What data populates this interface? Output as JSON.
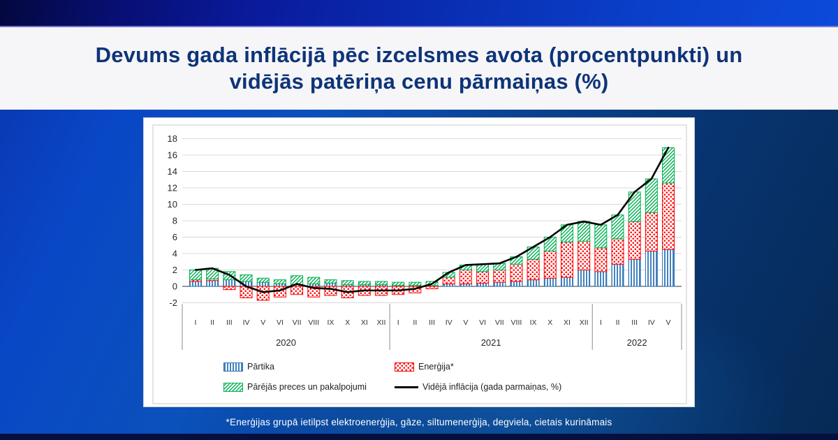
{
  "page": {
    "title_line1": "Devums gada inflācijā pēc izcelsmes avota (procentpunkti) un",
    "title_line2": "vidējās patēriņa cenu pārmaiņas (%)",
    "footnote": "*Enerģijas grupā ietilpst elektroenerģija, gāze, siltumenerģija, degviela, cietais kurināmais"
  },
  "colors": {
    "title_text": "#0e3478",
    "food": "#2e75b6",
    "energy": "#ff0000",
    "other": "#00b050",
    "line": "#000000",
    "grid": "#d9d9d9",
    "axis": "#595959"
  },
  "chart_data": {
    "type": "bar",
    "subtype": "stacked-column-with-line",
    "title": "Devums gada inflācijā pēc izcelsmes avota (procentpunkti) un vidējās patēriņa cenu pārmaiņas (%)",
    "xlabel": "",
    "ylabel": "",
    "ylim": [
      -2,
      18
    ],
    "y_step": 2,
    "grid": true,
    "legend_position": "bottom",
    "categories": [
      "I",
      "II",
      "III",
      "IV",
      "V",
      "VI",
      "VII",
      "VIII",
      "IX",
      "X",
      "XI",
      "XII",
      "I",
      "II",
      "III",
      "IV",
      "V",
      "VI",
      "VII",
      "VIII",
      "IX",
      "X",
      "XI",
      "XII",
      "I",
      "II",
      "III",
      "IV",
      "V"
    ],
    "year_groups": [
      {
        "label": "2020",
        "count": 12
      },
      {
        "label": "2021",
        "count": 12
      },
      {
        "label": "2022",
        "count": 5
      }
    ],
    "series": [
      {
        "name": "Pārtika",
        "color": "#2e75b6",
        "pattern": "vertical-stripes",
        "values": [
          0.6,
          0.7,
          0.8,
          0.6,
          0.5,
          0.3,
          0.2,
          0.3,
          0.4,
          0.2,
          0.2,
          0.2,
          0.1,
          0.1,
          0.1,
          0.3,
          0.3,
          0.4,
          0.5,
          0.6,
          0.8,
          1.0,
          1.1,
          2.0,
          1.8,
          2.7,
          3.3,
          4.3,
          4.5
        ]
      },
      {
        "name": "Enerģija*",
        "color": "#ff0000",
        "pattern": "dots",
        "values": [
          0.2,
          0.2,
          -0.4,
          -1.4,
          -1.7,
          -1.3,
          -1.0,
          -1.3,
          -1.1,
          -1.4,
          -1.1,
          -1.1,
          -1.0,
          -0.8,
          -0.3,
          0.8,
          1.7,
          1.4,
          1.5,
          2.1,
          2.5,
          3.3,
          4.3,
          3.5,
          2.9,
          3.1,
          4.6,
          4.7,
          8.1
        ]
      },
      {
        "name": "Pārējās preces un pakalpojumi",
        "color": "#00b050",
        "pattern": "diagonal-stripes",
        "values": [
          1.2,
          1.3,
          1.0,
          0.8,
          0.5,
          0.5,
          1.1,
          0.8,
          0.4,
          0.5,
          0.4,
          0.4,
          0.4,
          0.4,
          0.5,
          0.6,
          0.6,
          0.9,
          0.8,
          0.9,
          1.5,
          1.7,
          2.1,
          2.4,
          2.8,
          2.9,
          3.6,
          4.1,
          4.3
        ]
      }
    ],
    "line_series": {
      "name": "Vidējā inflācija (gada parmaiņas, %)",
      "color": "#000000",
      "values": [
        2.0,
        2.2,
        1.4,
        0.0,
        -0.7,
        -0.5,
        0.3,
        -0.2,
        -0.3,
        -0.7,
        -0.5,
        -0.5,
        -0.5,
        -0.3,
        0.3,
        1.7,
        2.6,
        2.7,
        2.8,
        3.6,
        4.8,
        6.0,
        7.5,
        7.9,
        7.5,
        8.7,
        11.5,
        13.1,
        16.9
      ]
    }
  }
}
